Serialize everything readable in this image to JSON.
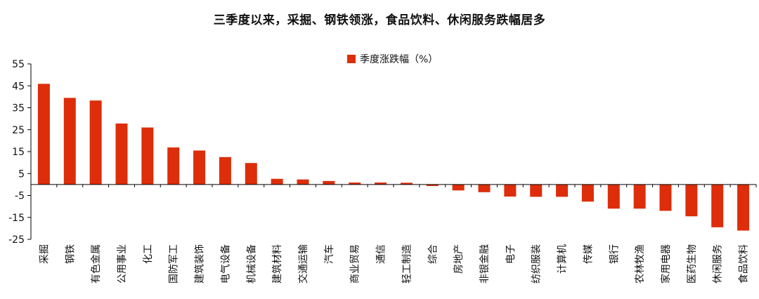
{
  "chart_data": {
    "type": "bar",
    "title": "三季度以来，采掘、钢铁领涨，食品饮料、休闲服务跌幅居多",
    "legend": "季度涨跌幅（%）",
    "legend_position": "top",
    "bar_color": "#dd2d0a",
    "ylim": [
      -25,
      55
    ],
    "yticks": [
      -25,
      -15,
      -5,
      5,
      15,
      25,
      35,
      45,
      55
    ],
    "grid": false,
    "categories": [
      "采掘",
      "钢铁",
      "有色金属",
      "公用事业",
      "化工",
      "国防军工",
      "建筑装饰",
      "电气设备",
      "机械设备",
      "建筑材料",
      "交通运输",
      "汽车",
      "商业贸易",
      "通信",
      "轻工制造",
      "综合",
      "房地产",
      "非银金融",
      "电子",
      "纺织服装",
      "计算机",
      "传媒",
      "银行",
      "农林牧渔",
      "家用电器",
      "医药生物",
      "休闲服务",
      "食品饮料"
    ],
    "values": [
      45.9,
      39.5,
      38.3,
      27.8,
      26.0,
      16.9,
      15.5,
      12.5,
      9.8,
      2.6,
      2.3,
      1.6,
      0.9,
      0.9,
      0.8,
      -0.7,
      -2.7,
      -3.5,
      -5.5,
      -5.6,
      -5.6,
      -7.8,
      -11.0,
      -11.0,
      -12.0,
      -14.5,
      -19.5,
      -21.0
    ]
  }
}
